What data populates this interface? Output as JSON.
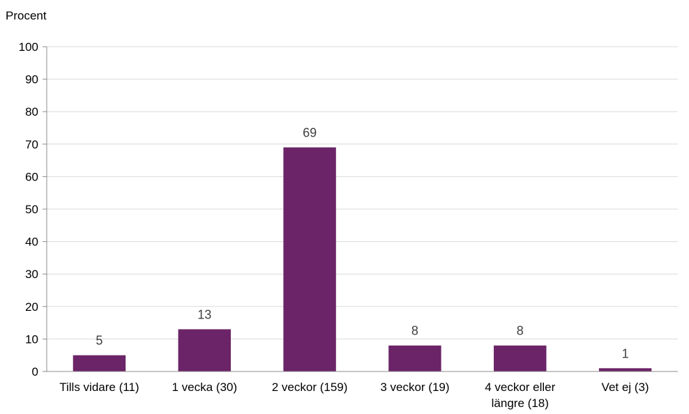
{
  "chart_data": {
    "type": "bar",
    "ylabel": "Procent",
    "categories": [
      [
        "Tills vidare (11)"
      ],
      [
        "1 vecka (30)"
      ],
      [
        "2 veckor (159)"
      ],
      [
        "3 veckor (19)"
      ],
      [
        "4 veckor eller",
        "längre (18)"
      ],
      [
        "Vet ej (3)"
      ]
    ],
    "values": [
      5,
      13,
      69,
      8,
      8,
      1
    ],
    "data_labels": [
      "5",
      "13",
      "69",
      "8",
      "8",
      "1"
    ],
    "ylim": [
      0,
      100
    ],
    "yticks": [
      0,
      10,
      20,
      30,
      40,
      50,
      60,
      70,
      80,
      90,
      100
    ],
    "grid": true,
    "legend": "none",
    "colors": {
      "bar": "#6b2467",
      "grid": "#d9d9d9",
      "axis": "#8c8c8c"
    }
  }
}
